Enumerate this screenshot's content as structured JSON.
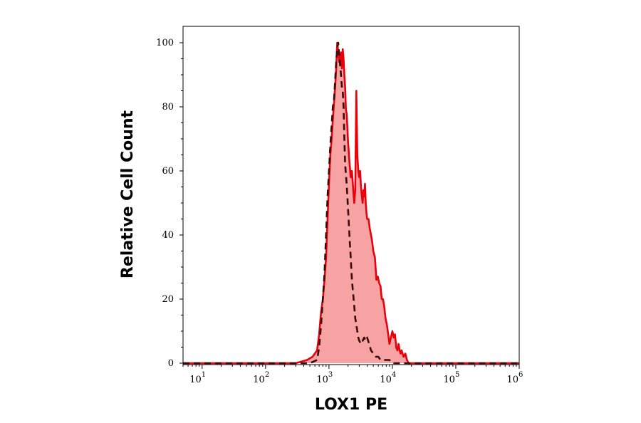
{
  "chart_data": {
    "type": "area",
    "xlabel": "LOX1 PE",
    "ylabel": "Relative Cell Count",
    "x_scale": "log",
    "xlim": [
      5,
      1000000
    ],
    "ylim": [
      0,
      100
    ],
    "x_ticks": [
      {
        "base": "10",
        "exp": "1",
        "value": 10
      },
      {
        "base": "10",
        "exp": "2",
        "value": 100
      },
      {
        "base": "10",
        "exp": "3",
        "value": 1000
      },
      {
        "base": "10",
        "exp": "4",
        "value": 10000
      },
      {
        "base": "10",
        "exp": "5",
        "value": 100000
      },
      {
        "base": "10",
        "exp": "6",
        "value": 1000000
      }
    ],
    "y_ticks": [
      0,
      20,
      40,
      60,
      80,
      100
    ],
    "grid": false,
    "colors": {
      "stained_line": "#e8000b",
      "stained_fill": "#f7a3a3",
      "control_line": "#3a0a0a"
    },
    "series": [
      {
        "style": "solid-filled",
        "x": [
          5,
          300,
          450,
          550,
          650,
          700,
          750,
          800,
          850,
          900,
          950,
          1000,
          1050,
          1100,
          1150,
          1200,
          1250,
          1300,
          1350,
          1400,
          1450,
          1500,
          1550,
          1600,
          1650,
          1700,
          1750,
          1800,
          1850,
          1900,
          1950,
          2000,
          2100,
          2200,
          2300,
          2400,
          2500,
          2600,
          2700,
          2800,
          2900,
          3000,
          3100,
          3200,
          3300,
          3400,
          3500,
          3600,
          3700,
          3800,
          3900,
          4000,
          4200,
          4400,
          4600,
          4800,
          5000,
          5300,
          5600,
          5900,
          6200,
          6500,
          6800,
          7100,
          7400,
          7800,
          8200,
          8600,
          9000,
          9500,
          10000,
          10500,
          11000,
          11500,
          12000,
          12500,
          13000,
          13500,
          14000,
          15000,
          16000,
          17000,
          18000,
          20000,
          22000,
          25000,
          1000000
        ],
        "y": [
          0,
          0,
          1,
          2,
          4,
          9,
          16,
          20,
          26,
          33,
          45,
          56,
          65,
          70,
          76,
          81,
          86,
          92,
          100,
          97,
          94,
          95,
          97,
          92,
          98,
          95,
          90,
          86,
          79,
          78,
          74,
          69,
          63,
          58,
          60,
          55,
          50,
          54,
          85,
          65,
          60,
          58,
          60,
          55,
          52,
          50,
          54,
          52,
          56,
          50,
          47,
          45,
          45,
          42,
          40,
          38,
          35,
          33,
          26,
          27,
          25,
          24,
          20,
          20,
          18,
          14,
          12,
          9,
          6,
          8,
          10,
          8,
          9,
          5,
          4,
          6,
          4,
          3,
          4,
          2,
          3,
          1,
          0,
          0,
          0,
          0,
          0
        ]
      },
      {
        "style": "dashed",
        "x": [
          5,
          500,
          650,
          700,
          750,
          800,
          850,
          900,
          950,
          1000,
          1050,
          1100,
          1150,
          1200,
          1250,
          1300,
          1350,
          1400,
          1450,
          1500,
          1550,
          1600,
          1650,
          1700,
          1750,
          1800,
          1900,
          2000,
          2100,
          2200,
          2300,
          2400,
          2500,
          2600,
          2700,
          2800,
          2900,
          3000,
          3200,
          3400,
          3600,
          3800,
          4000,
          4300,
          4600,
          5000,
          5500,
          6000,
          6500,
          7000,
          8000,
          9000,
          10000,
          11000,
          1000000
        ],
        "y": [
          0,
          0,
          1,
          5,
          12,
          20,
          28,
          40,
          52,
          60,
          68,
          74,
          80,
          82,
          88,
          94,
          98,
          100,
          96,
          93,
          90,
          86,
          85,
          80,
          70,
          62,
          56,
          48,
          40,
          33,
          26,
          22,
          18,
          14,
          12,
          10,
          8,
          7,
          6,
          7,
          8,
          7,
          8,
          6,
          4,
          3,
          2,
          2,
          1,
          1,
          1,
          1,
          0,
          0,
          0
        ]
      }
    ]
  }
}
